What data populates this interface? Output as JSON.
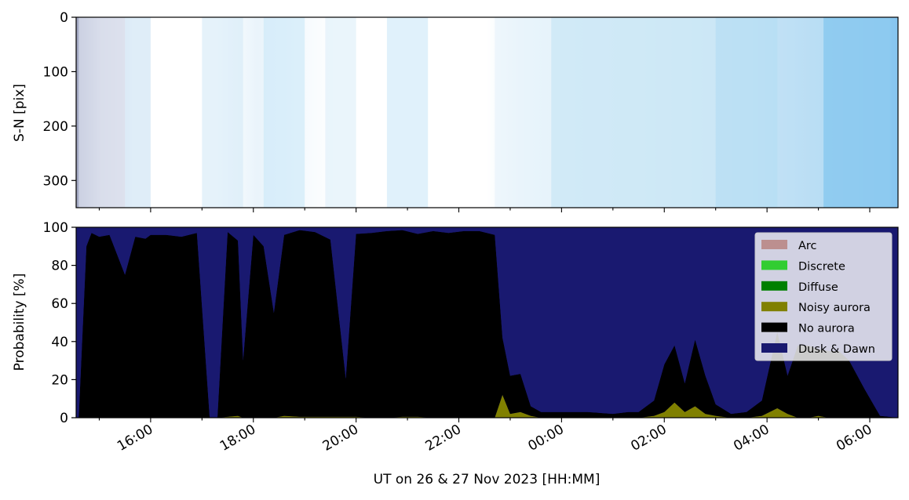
{
  "chart_data": [
    {
      "type": "heatmap",
      "description_of_content": "keogram image",
      "ylabel": "S-N [pix]",
      "ylim": [
        350,
        0
      ],
      "yticks": [
        "0",
        "100",
        "200",
        "300"
      ],
      "yticks_values": [
        0,
        100,
        200,
        300
      ],
      "shared_xaxis": true,
      "colors": {
        "background": "#ffffff",
        "light_blue": "#9fd3f2",
        "mid_blue": "#6cb8ec",
        "dark_edge": "#8d94b4"
      },
      "bands": [
        {
          "x": [
            14.6,
            15.5
          ],
          "color": "#d6dbea",
          "opacity": 0.8
        },
        {
          "x": [
            15.5,
            16.0
          ],
          "color": "#bfdcf2",
          "opacity": 0.5
        },
        {
          "x": [
            17.0,
            17.8
          ],
          "color": "#d3e9f7",
          "opacity": 0.6
        },
        {
          "x": [
            18.2,
            19.0
          ],
          "color": "#c9e7f8",
          "opacity": 0.6
        },
        {
          "x": [
            19.4,
            20.0
          ],
          "color": "#d6ecf8",
          "opacity": 0.5
        },
        {
          "x": [
            20.6,
            21.4
          ],
          "color": "#cce8f8",
          "opacity": 0.6
        },
        {
          "x": [
            22.7,
            23.8
          ],
          "color": "#e8f4fb",
          "opacity": 0.7
        },
        {
          "x": [
            23.8,
            27.0
          ],
          "color": "#cbe7f5",
          "opacity": 0.75
        },
        {
          "x": [
            27.0,
            28.2
          ],
          "color": "#b8dff4",
          "opacity": 0.8
        },
        {
          "x": [
            28.2,
            29.1
          ],
          "color": "#c4e3f5",
          "opacity": 0.6
        },
        {
          "x": [
            29.1,
            30.4
          ],
          "color": "#8dcaf0",
          "opacity": 0.85
        }
      ]
    },
    {
      "type": "area",
      "stacked": true,
      "ylabel": "Probability [%]",
      "xlabel": "UT on 26 & 27 Nov 2023 [HH:MM]",
      "ylim": [
        0,
        100
      ],
      "yticks": [
        "0",
        "20",
        "40",
        "60",
        "80",
        "100"
      ],
      "yticks_values": [
        0,
        20,
        40,
        60,
        80,
        100
      ],
      "xlim": [
        14.55,
        30.55
      ],
      "xticks": [
        "16:00",
        "18:00",
        "20:00",
        "22:00",
        "00:00",
        "02:00",
        "04:00",
        "06:00"
      ],
      "xticks_values": [
        16,
        18,
        20,
        22,
        24,
        26,
        28,
        30
      ],
      "legend_position": "top-right",
      "legend": [
        {
          "label": "Arc",
          "color": "#bc8f8f"
        },
        {
          "label": "Discrete",
          "color": "#32cd32"
        },
        {
          "label": "Diffuse",
          "color": "#008000"
        },
        {
          "label": "Noisy aurora",
          "color": "#808000"
        },
        {
          "label": "No aurora",
          "color": "#000000"
        },
        {
          "label": "Dusk & Dawn",
          "color": "#191970"
        }
      ],
      "x": [
        14.6,
        14.75,
        14.85,
        15.0,
        15.2,
        15.5,
        15.7,
        15.9,
        16.0,
        16.3,
        16.6,
        16.9,
        17.15,
        17.3,
        17.5,
        17.7,
        17.8,
        18.0,
        18.2,
        18.4,
        18.6,
        18.9,
        19.2,
        19.5,
        19.8,
        20.0,
        20.3,
        20.6,
        20.9,
        21.2,
        21.5,
        21.8,
        22.1,
        22.4,
        22.7,
        22.85,
        23.0,
        23.2,
        23.4,
        23.6,
        23.8,
        24.0,
        24.5,
        25.0,
        25.3,
        25.5,
        25.8,
        26.0,
        26.2,
        26.4,
        26.6,
        26.8,
        27.0,
        27.3,
        27.6,
        27.9,
        28.2,
        28.4,
        28.6,
        28.8,
        29.0,
        29.2,
        29.4,
        29.6,
        29.9,
        30.2,
        30.55
      ],
      "series": [
        {
          "name": "Noisy aurora",
          "values": [
            0,
            0,
            0,
            0,
            0,
            0,
            0,
            0,
            0,
            0,
            0,
            0,
            0,
            0,
            0.5,
            1,
            0,
            0,
            0,
            0,
            1,
            0.5,
            0.5,
            0.5,
            0.5,
            0.5,
            0,
            0,
            0.5,
            0.5,
            0,
            0,
            0,
            0,
            0,
            12,
            2,
            3,
            1,
            0,
            0,
            0,
            0,
            0,
            0,
            0,
            1,
            3,
            8,
            3,
            6,
            2,
            1,
            0,
            0,
            1,
            5,
            2,
            0,
            0,
            1,
            0,
            0,
            0,
            0,
            0,
            0
          ]
        },
        {
          "name": "No aurora",
          "values": [
            0,
            90,
            97,
            95,
            96,
            75,
            95,
            94,
            96,
            96,
            95,
            97,
            0,
            0,
            97,
            92,
            30,
            96,
            90,
            55,
            95,
            98,
            97,
            93,
            20,
            96,
            97,
            98,
            98,
            96,
            98,
            97,
            98,
            98,
            96,
            30,
            20,
            20,
            5,
            3,
            3,
            3,
            3,
            2,
            3,
            3,
            8,
            25,
            30,
            15,
            35,
            20,
            6,
            2,
            3,
            8,
            40,
            20,
            38,
            38,
            35,
            35,
            35,
            30,
            15,
            1,
            0
          ]
        },
        {
          "name": "Dusk & Dawn",
          "values": [
            100,
            10,
            3,
            5,
            4,
            25,
            5,
            6,
            4,
            4,
            5,
            3,
            100,
            100,
            2.5,
            7,
            70,
            4,
            10,
            45,
            4,
            1.5,
            2.5,
            6.5,
            79.5,
            3.5,
            3,
            2,
            1.5,
            3.5,
            2,
            3,
            2,
            2,
            4,
            58,
            78,
            77,
            94,
            97,
            97,
            97,
            97,
            98,
            97,
            97,
            91,
            72,
            62,
            82,
            59,
            78,
            93,
            98,
            97,
            91,
            55,
            78,
            62,
            62,
            64,
            65,
            65,
            70,
            85,
            99,
            100
          ]
        }
      ]
    }
  ]
}
